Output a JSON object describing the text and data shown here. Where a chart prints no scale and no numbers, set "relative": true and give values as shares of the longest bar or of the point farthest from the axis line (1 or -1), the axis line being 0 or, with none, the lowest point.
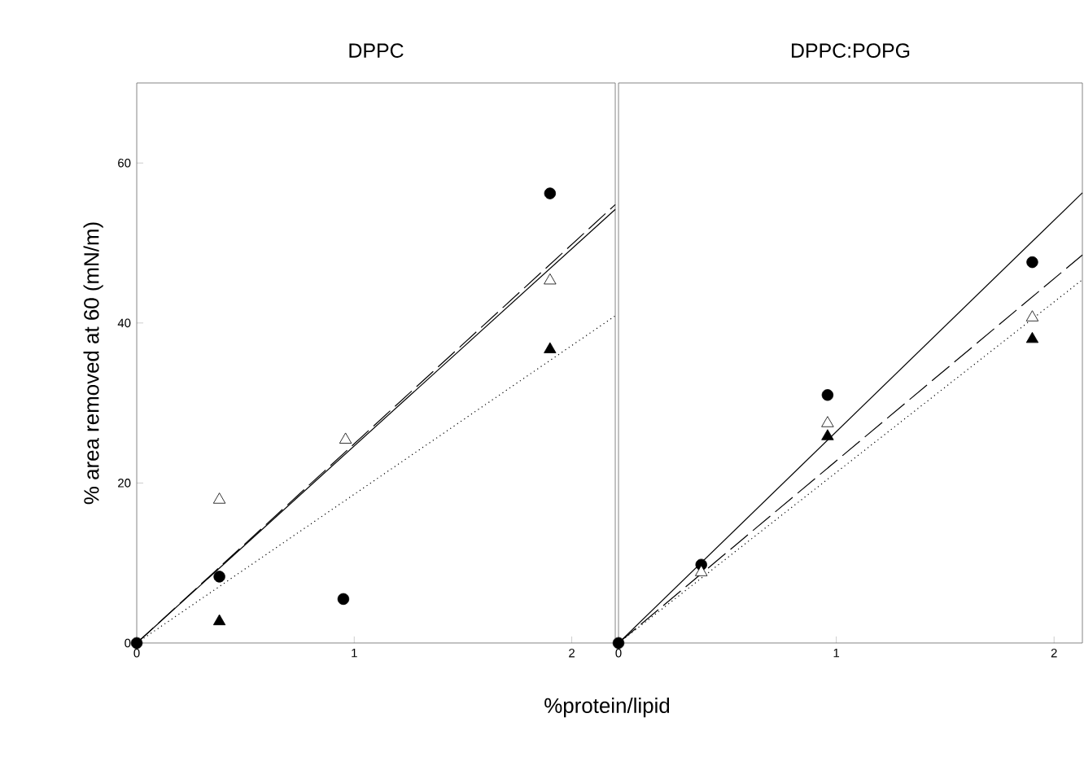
{
  "chart_data": [
    {
      "type": "scatter",
      "title": "DPPC",
      "xlabel": "%protein/lipid",
      "ylabel": "% area removed at 60 (mN/m)",
      "xlim": [
        0,
        2.2
      ],
      "xticks": [
        0,
        1,
        2
      ],
      "ylim": [
        0,
        70
      ],
      "yticks": [
        0,
        20,
        40,
        60
      ],
      "grid": false,
      "series": [
        {
          "marker": "circle",
          "color": "#000000",
          "x": [
            0,
            0.38,
            0.95,
            1.9
          ],
          "values": [
            0,
            8.3,
            5.5,
            56.2
          ]
        },
        {
          "marker": "triangle",
          "color": "#ffffff",
          "x": [
            0.38,
            0.96,
            1.9
          ],
          "values": [
            17.9,
            25.4,
            45.3
          ]
        },
        {
          "marker": "triangle",
          "color": "#000000",
          "x": [
            0.38,
            1.9
          ],
          "values": [
            2.7,
            36.7
          ]
        },
        {
          "type": "line",
          "line_style": "solid",
          "color": "#000000",
          "x": [
            0,
            2.2
          ],
          "values": [
            0,
            54.2
          ]
        },
        {
          "type": "line",
          "line_style": "dashed",
          "color": "#000000",
          "x": [
            0,
            2.2
          ],
          "values": [
            0,
            54.8
          ]
        },
        {
          "type": "line",
          "line_style": "dotted",
          "color": "#000000",
          "x": [
            0,
            2.2
          ],
          "values": [
            0,
            40.9
          ]
        }
      ]
    },
    {
      "type": "scatter",
      "title": "DPPC:POPG",
      "xlim": [
        0,
        2.13
      ],
      "xticks": [
        0,
        1,
        2
      ],
      "relative": true,
      "tick_labels": "x",
      "grid": false,
      "series": [
        {
          "marker": "circle",
          "color": "#000000",
          "x": [
            0,
            0.38,
            0.96,
            1.9
          ],
          "values": [
            0,
            0.174,
            0.551,
            0.846
          ]
        },
        {
          "marker": "triangle",
          "color": "#ffffff",
          "x": [
            0.38,
            0.96,
            1.9
          ],
          "values": [
            0.157,
            0.488,
            0.723
          ]
        },
        {
          "marker": "triangle",
          "color": "#000000",
          "x": [
            0.96,
            1.9
          ],
          "values": [
            0.459,
            0.675
          ]
        },
        {
          "type": "line",
          "line_style": "solid",
          "color": "#000000",
          "x": [
            0,
            2.13
          ],
          "values": [
            0,
            1
          ]
        },
        {
          "type": "line",
          "line_style": "dashed",
          "color": "#000000",
          "x": [
            0,
            2.13
          ],
          "values": [
            0,
            0.862
          ]
        },
        {
          "type": "line",
          "line_style": "dotted",
          "color": "#000000",
          "x": [
            0,
            2.13
          ],
          "values": [
            0,
            0.807
          ]
        }
      ]
    }
  ]
}
